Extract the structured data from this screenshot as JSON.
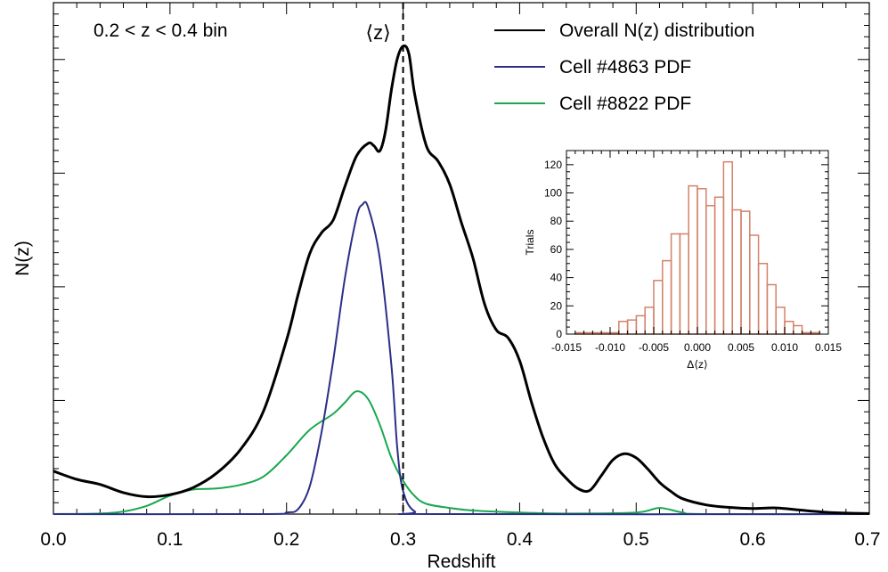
{
  "chart_data": [
    {
      "type": "line",
      "xlabel": "Redshift",
      "ylabel": "N(z)",
      "annotation": "0.2 < z < 0.4 bin",
      "marker_label": "⟨z⟩",
      "marker_x": 0.3,
      "xlim": [
        0.0,
        0.7
      ],
      "ylim": [
        0,
        1.0
      ],
      "x_ticks": [
        "0.0",
        "0.1",
        "0.2",
        "0.3",
        "0.4",
        "0.5",
        "0.6",
        "0.7"
      ],
      "y_tick_labels_shown": false,
      "legend_position": "top-right",
      "series": [
        {
          "name": "Overall N(z) distribution",
          "color": "#000000",
          "points": [
            [
              0.0,
              0.084
            ],
            [
              0.02,
              0.068
            ],
            [
              0.04,
              0.058
            ],
            [
              0.06,
              0.042
            ],
            [
              0.08,
              0.034
            ],
            [
              0.1,
              0.038
            ],
            [
              0.12,
              0.052
            ],
            [
              0.14,
              0.08
            ],
            [
              0.16,
              0.125
            ],
            [
              0.18,
              0.2
            ],
            [
              0.2,
              0.34
            ],
            [
              0.21,
              0.43
            ],
            [
              0.22,
              0.51
            ],
            [
              0.23,
              0.55
            ],
            [
              0.24,
              0.575
            ],
            [
              0.25,
              0.64
            ],
            [
              0.26,
              0.7
            ],
            [
              0.27,
              0.725
            ],
            [
              0.275,
              0.72
            ],
            [
              0.28,
              0.71
            ],
            [
              0.285,
              0.75
            ],
            [
              0.29,
              0.83
            ],
            [
              0.295,
              0.89
            ],
            [
              0.3,
              0.915
            ],
            [
              0.305,
              0.9
            ],
            [
              0.31,
              0.82
            ],
            [
              0.32,
              0.72
            ],
            [
              0.33,
              0.69
            ],
            [
              0.34,
              0.645
            ],
            [
              0.35,
              0.57
            ],
            [
              0.36,
              0.5
            ],
            [
              0.37,
              0.41
            ],
            [
              0.38,
              0.36
            ],
            [
              0.39,
              0.345
            ],
            [
              0.4,
              0.3
            ],
            [
              0.41,
              0.22
            ],
            [
              0.42,
              0.15
            ],
            [
              0.43,
              0.098
            ],
            [
              0.44,
              0.07
            ],
            [
              0.45,
              0.05
            ],
            [
              0.46,
              0.046
            ],
            [
              0.47,
              0.075
            ],
            [
              0.48,
              0.106
            ],
            [
              0.49,
              0.118
            ],
            [
              0.5,
              0.11
            ],
            [
              0.51,
              0.088
            ],
            [
              0.52,
              0.062
            ],
            [
              0.53,
              0.044
            ],
            [
              0.54,
              0.03
            ],
            [
              0.56,
              0.018
            ],
            [
              0.58,
              0.013
            ],
            [
              0.6,
              0.011
            ],
            [
              0.62,
              0.012
            ],
            [
              0.64,
              0.008
            ],
            [
              0.66,
              0.004
            ],
            [
              0.68,
              0.002
            ],
            [
              0.7,
              0.001
            ]
          ]
        },
        {
          "name": "Cell #4863 PDF",
          "color": "#2b2f86",
          "points": [
            [
              0.0,
              0.0
            ],
            [
              0.18,
              0.0
            ],
            [
              0.2,
              0.003
            ],
            [
              0.21,
              0.01
            ],
            [
              0.22,
              0.055
            ],
            [
              0.23,
              0.16
            ],
            [
              0.24,
              0.3
            ],
            [
              0.25,
              0.46
            ],
            [
              0.26,
              0.58
            ],
            [
              0.265,
              0.605
            ],
            [
              0.27,
              0.6
            ],
            [
              0.28,
              0.5
            ],
            [
              0.29,
              0.29
            ],
            [
              0.295,
              0.13
            ],
            [
              0.3,
              0.045
            ],
            [
              0.31,
              0.005
            ],
            [
              0.33,
              0.0
            ],
            [
              0.7,
              0.0
            ]
          ]
        },
        {
          "name": "Cell #8822 PDF",
          "color": "#1aa84f",
          "points": [
            [
              0.0,
              0.0
            ],
            [
              0.04,
              0.001
            ],
            [
              0.06,
              0.005
            ],
            [
              0.08,
              0.016
            ],
            [
              0.1,
              0.036
            ],
            [
              0.12,
              0.048
            ],
            [
              0.14,
              0.05
            ],
            [
              0.16,
              0.057
            ],
            [
              0.18,
              0.073
            ],
            [
              0.2,
              0.115
            ],
            [
              0.22,
              0.165
            ],
            [
              0.24,
              0.196
            ],
            [
              0.25,
              0.218
            ],
            [
              0.26,
              0.24
            ],
            [
              0.27,
              0.225
            ],
            [
              0.28,
              0.175
            ],
            [
              0.29,
              0.11
            ],
            [
              0.3,
              0.065
            ],
            [
              0.31,
              0.035
            ],
            [
              0.32,
              0.02
            ],
            [
              0.34,
              0.012
            ],
            [
              0.36,
              0.007
            ],
            [
              0.4,
              0.003
            ],
            [
              0.44,
              0.001
            ],
            [
              0.5,
              0.003
            ],
            [
              0.52,
              0.012
            ],
            [
              0.54,
              0.003
            ],
            [
              0.56,
              0.0
            ],
            [
              0.7,
              0.0
            ]
          ]
        }
      ],
      "reference_lines": [
        {
          "x": 0.3,
          "style": "dashed",
          "color": "#000000"
        }
      ]
    },
    {
      "type": "bar",
      "subtype": "histogram",
      "xlabel": "Δ⟨z⟩",
      "ylabel": "Trials",
      "xlim": [
        -0.015,
        0.015
      ],
      "ylim": [
        0,
        130
      ],
      "x_ticks": [
        "-0.015",
        "-0.010",
        "-0.005",
        "0.000",
        "0.005",
        "0.010",
        "0.015"
      ],
      "y_ticks": [
        "0",
        "20",
        "40",
        "60",
        "80",
        "100",
        "120"
      ],
      "bin_width": 0.001,
      "bin_edges_start": -0.015,
      "counts": [
        0,
        1,
        1,
        1,
        1,
        1,
        9,
        10,
        13,
        19,
        38,
        52,
        71,
        71,
        105,
        103,
        91,
        97,
        122,
        88,
        87,
        70,
        50,
        35,
        19,
        9,
        6,
        1,
        1,
        0
      ],
      "bar_color": "#d4826a"
    }
  ]
}
